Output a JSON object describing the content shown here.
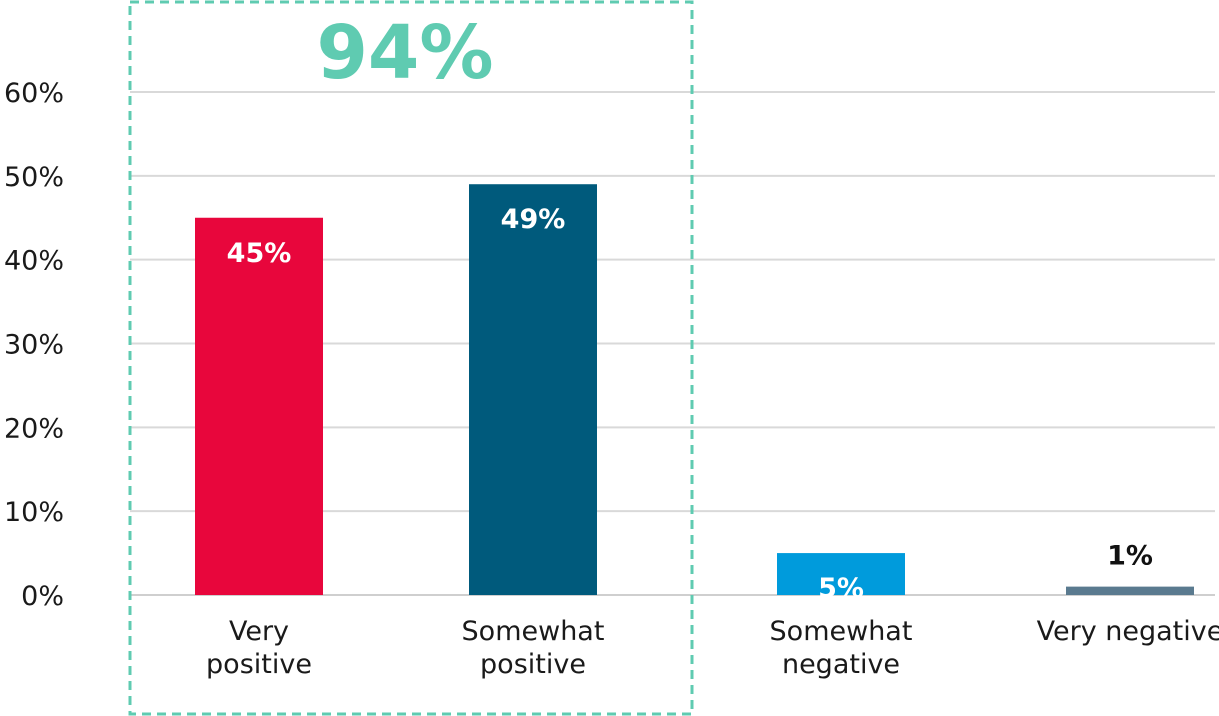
{
  "chart_data": {
    "type": "bar",
    "categories": [
      [
        "Very",
        "positive"
      ],
      [
        "Somewhat",
        "positive"
      ],
      [
        "Somewhat",
        "negative"
      ],
      [
        "Very negative"
      ]
    ],
    "values": [
      45,
      49,
      5,
      1
    ],
    "data_labels": [
      "45%",
      "49%",
      "5%",
      "1%"
    ],
    "bar_colors": [
      "#e8063c",
      "#005a7c",
      "#009bdc",
      "#5a7a8f"
    ],
    "label_colors": [
      "#ffffff",
      "#ffffff",
      "#ffffff",
      "#111111"
    ],
    "yticks": [
      "0%",
      "10%",
      "20%",
      "30%",
      "40%",
      "50%",
      "60%"
    ],
    "ylim": [
      0,
      60
    ],
    "grid": true,
    "highlight": {
      "label": "94%",
      "categories": [
        0,
        1
      ],
      "color": "#5fcbb1"
    }
  }
}
